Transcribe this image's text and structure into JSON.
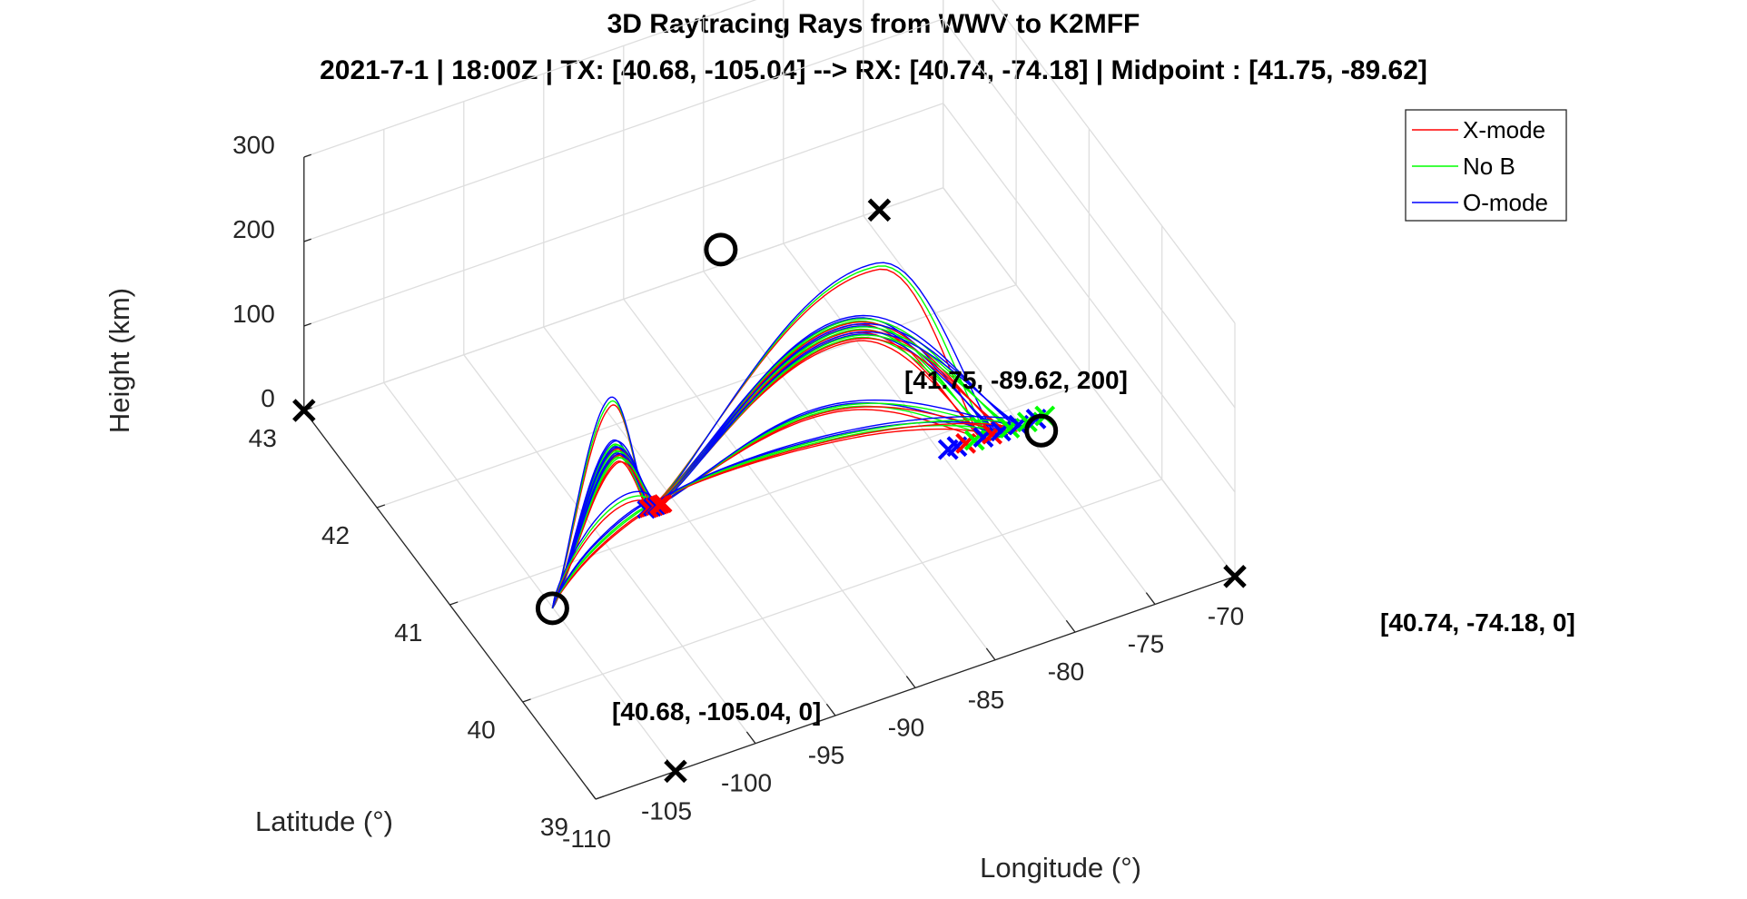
{
  "chart_data": {
    "type": "line3d",
    "title": "3D Raytracing Rays from WWV to K2MFF",
    "subtitle": "2021-7-1 | 18:00Z | TX: [40.68, -105.04] --> RX: [40.74, -74.18] | Midpoint : [41.75, -89.62]",
    "xlabel": "Longitude (°)",
    "ylabel": "Latitude (°)",
    "zlabel": "Height (km)",
    "xlim": [
      -110,
      -70
    ],
    "ylim": [
      39,
      43
    ],
    "zlim": [
      0,
      300
    ],
    "x_ticks": [
      -110,
      -105,
      -100,
      -95,
      -90,
      -85,
      -80,
      -75,
      -70
    ],
    "y_ticks": [
      39,
      40,
      41,
      42,
      43
    ],
    "z_ticks": [
      0,
      100,
      200,
      300
    ],
    "x_ticklabels": [
      "-110",
      "-105",
      "-100",
      "-95",
      "-90",
      "-85",
      "-80",
      "-75",
      "-70"
    ],
    "y_ticklabels": [
      "39",
      "40",
      "41",
      "42",
      "43"
    ],
    "z_ticklabels": [
      "0",
      "100",
      "200",
      "300"
    ],
    "grid": true,
    "legend_position": "top-right",
    "series": [
      {
        "name": "X-mode",
        "color": "#ff0000"
      },
      {
        "name": "No B",
        "color": "#00ff00"
      },
      {
        "name": "O-mode",
        "color": "#0000ff"
      }
    ],
    "ray_families": [
      {
        "apex_lon": -100.0,
        "apex_height": 170,
        "count": 3
      },
      {
        "apex_lon": -99.9,
        "apex_height": 117,
        "count": 6
      },
      {
        "apex_lon": -99.8,
        "apex_height": 108,
        "count": 6
      },
      {
        "apex_lon": -99.7,
        "apex_height": 99,
        "count": 6
      },
      {
        "apex_lon": -100.6,
        "apex_height": 45,
        "count": 3
      },
      {
        "apex_lon": -101.4,
        "apex_height": 18,
        "count": 6
      },
      {
        "apex_lon": -83.5,
        "apex_height": 230,
        "count": 3
      },
      {
        "apex_lon": -85.0,
        "apex_height": 170,
        "count": 6
      },
      {
        "apex_lon": -85.0,
        "apex_height": 160,
        "count": 6
      },
      {
        "apex_lon": -85.0,
        "apex_height": 150,
        "count": 6
      },
      {
        "apex_lon": -86.0,
        "apex_height": 70,
        "count": 6
      },
      {
        "apex_lon": -85.0,
        "apex_height": 35,
        "count": 6
      }
    ],
    "points": [
      {
        "name": "tx",
        "lat": 40.68,
        "lon": -105.04,
        "height": 0,
        "marker": "circle",
        "label": "[40.68, -105.04, 0]"
      },
      {
        "name": "rx",
        "lat": 40.74,
        "lon": -74.18,
        "height": 0,
        "marker": "circle",
        "label": "[40.74, -74.18, 0]"
      },
      {
        "name": "midpoint",
        "lat": 41.75,
        "lon": -89.62,
        "height": 200,
        "marker": "circle",
        "label": "[41.75, -89.62, 200]"
      }
    ],
    "x_markers": [
      {
        "lon": -110,
        "lat": 43,
        "height": 0
      },
      {
        "lon": -105,
        "lat": 39,
        "height": 0
      },
      {
        "lon": -70,
        "lat": 39,
        "height": 0
      },
      {
        "lon": -74,
        "lat": 43,
        "height": 0
      }
    ]
  }
}
